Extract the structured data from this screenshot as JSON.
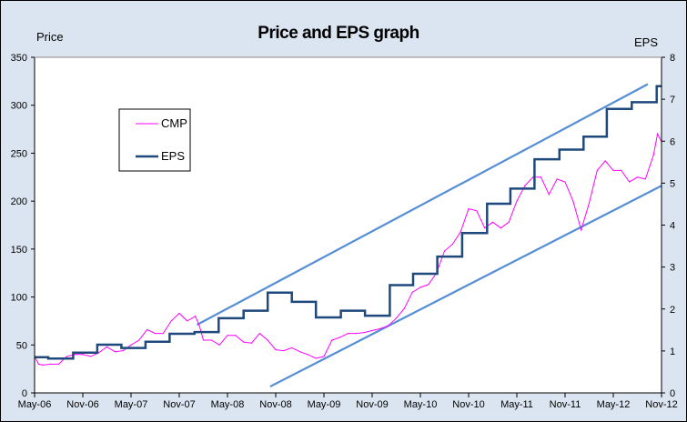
{
  "chart_data": {
    "type": "line",
    "title": "Price and EPS graph",
    "ylabel": "Price",
    "y2label": "EPS",
    "ylim": [
      0,
      350
    ],
    "y2lim": [
      0,
      8
    ],
    "yticks": [
      0,
      50,
      100,
      150,
      200,
      250,
      300,
      350
    ],
    "y2ticks": [
      0,
      1,
      2,
      3,
      4,
      5,
      6,
      7,
      8
    ],
    "x_unit": "months since May-06",
    "xlim": [
      0,
      78
    ],
    "xtick_labels": [
      "May-06",
      "Nov-06",
      "May-07",
      "Nov-07",
      "May-08",
      "Nov-08",
      "May-09",
      "Nov-09",
      "May-10",
      "Nov-10",
      "May-11",
      "Nov-11",
      "May-12",
      "Nov-12"
    ],
    "legend": {
      "position": "upper-left",
      "entries": [
        "CMP",
        "EPS"
      ]
    },
    "series": [
      {
        "name": "CMP",
        "axis": "left",
        "color": "#ff00ff",
        "x": [
          0,
          0.5,
          1,
          2,
          3,
          4,
          5,
          6,
          7,
          8,
          9,
          10,
          11,
          12,
          13,
          14,
          15,
          16,
          17,
          18,
          19,
          20,
          20.5,
          21,
          22,
          23,
          24,
          25,
          26,
          27,
          28,
          29,
          30,
          31,
          32,
          33,
          34,
          35,
          36,
          37,
          38,
          39,
          40,
          41,
          42,
          43,
          44,
          45,
          46,
          47,
          48,
          49,
          50,
          51,
          52,
          53,
          54,
          55,
          56,
          57,
          58,
          59,
          60,
          61,
          62,
          63,
          64,
          65,
          66,
          67,
          68,
          69,
          70,
          71,
          72,
          73,
          74,
          75,
          76,
          77,
          77.5,
          78
        ],
        "values": [
          38,
          30,
          29,
          30,
          30,
          38,
          40,
          40,
          38,
          42,
          48,
          43,
          44,
          50,
          55,
          66,
          62,
          62,
          75,
          83,
          75,
          80,
          70,
          55,
          55,
          50,
          60,
          60,
          53,
          52,
          62,
          55,
          45,
          44,
          47,
          43,
          40,
          36,
          38,
          55,
          58,
          62,
          62,
          63,
          65,
          67,
          70,
          78,
          88,
          105,
          110,
          113,
          125,
          148,
          155,
          168,
          192,
          190,
          172,
          178,
          172,
          178,
          200,
          216,
          225,
          225,
          207,
          223,
          220,
          200,
          170,
          198,
          232,
          242,
          232,
          232,
          220,
          225,
          223,
          248,
          270,
          262
        ]
      },
      {
        "name": "EPS",
        "axis": "right",
        "color": "#1f497d",
        "step_starts": [
          0,
          1.7,
          4.8,
          7.8,
          10.8,
          13.8,
          16.8,
          19.9,
          22.9,
          26,
          29,
          32,
          35,
          38.1,
          41.1,
          44.2,
          47.1,
          50.1,
          53.2,
          56.3,
          59.2,
          62.2,
          65.3,
          68.3,
          71.2,
          74.3,
          77.4
        ],
        "values": [
          0.85,
          0.82,
          0.96,
          1.15,
          1.07,
          1.22,
          1.41,
          1.45,
          1.78,
          1.96,
          2.39,
          2.17,
          1.8,
          1.96,
          1.84,
          2.57,
          2.84,
          3.25,
          3.81,
          4.51,
          4.87,
          5.57,
          5.8,
          6.11,
          6.77,
          6.93,
          7.31
        ]
      }
    ],
    "trendlines": [
      {
        "name": "upper-channel",
        "color": "#558ed5",
        "from": [
          20.2,
          71
        ],
        "to": [
          76.3,
          322
        ]
      },
      {
        "name": "lower-channel",
        "color": "#558ed5",
        "from": [
          29.3,
          6.6
        ],
        "to": [
          78,
          216
        ]
      }
    ]
  }
}
